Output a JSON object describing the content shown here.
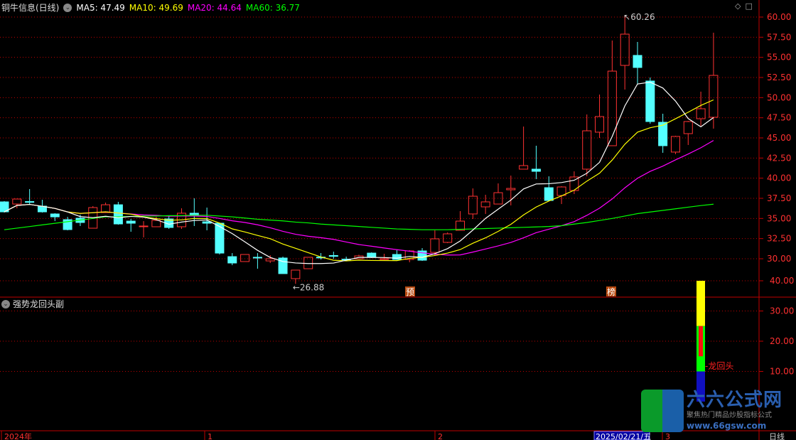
{
  "header": {
    "title": "铜牛信息(日线)",
    "ma5": "MA5: 47.49",
    "ma10": "MA10: 49.69",
    "ma20": "MA20: 44.64",
    "ma60": "MA60: 36.77"
  },
  "indicator": {
    "title": "强势龙回头副",
    "signal_label": "-龙回头"
  },
  "markers": {
    "low_label": "26.88",
    "high_label": "60.26",
    "pre": "预",
    "bang": "榜"
  },
  "bottom_axis": {
    "labels": [
      "2024年",
      "1",
      "2",
      "2025/02/21/五",
      "3"
    ],
    "period": "日线"
  },
  "window_icons": [
    "◇",
    "□"
  ],
  "logo": {
    "name": "六六公式网",
    "slogan": "聚焦热门精品炒股指标公式",
    "url": "www.66gsw.com"
  },
  "colors": {
    "up": "#ff3232",
    "down": "#54ffff",
    "ma5": "#ffffff",
    "ma10": "#ffff00",
    "ma20": "#ff00ff",
    "ma60": "#00ff00",
    "grid": "#c00000"
  },
  "chart_data": [
    {
      "type": "candlestick",
      "ylim": [
        27.5,
        60
      ],
      "yticks": [
        "60.00",
        "57.50",
        "55.00",
        "52.50",
        "50.00",
        "47.50",
        "45.00",
        "42.50",
        "40.00",
        "37.50",
        "35.00",
        "32.50",
        "30.00"
      ],
      "ohlc": [
        [
          37.06,
          37.15,
          35.73,
          35.82
        ],
        [
          36.79,
          37.41,
          36.26,
          37.41
        ],
        [
          37.1,
          38.65,
          36.7,
          37.0
        ],
        [
          36.53,
          37.32,
          35.73,
          35.82
        ],
        [
          35.56,
          35.65,
          34.67,
          35.2
        ],
        [
          34.85,
          35.2,
          33.53,
          33.62
        ],
        [
          35.03,
          35.47,
          34.06,
          34.5
        ],
        [
          33.79,
          36.53,
          33.79,
          36.35
        ],
        [
          35.73,
          36.97,
          35.73,
          36.7
        ],
        [
          36.7,
          37.06,
          34.23,
          34.32
        ],
        [
          34.67,
          34.94,
          33.35,
          34.41
        ],
        [
          34.06,
          34.67,
          32.65,
          34.06
        ],
        [
          33.97,
          35.2,
          33.97,
          34.76
        ],
        [
          34.94,
          35.29,
          33.7,
          33.88
        ],
        [
          33.97,
          36.26,
          33.7,
          35.65
        ],
        [
          35.65,
          37.5,
          34.06,
          35.38
        ],
        [
          34.59,
          36.35,
          33.53,
          34.41
        ],
        [
          34.41,
          34.5,
          30.53,
          30.7
        ],
        [
          30.26,
          30.7,
          29.2,
          29.47
        ],
        [
          29.65,
          30.53,
          29.65,
          30.53
        ],
        [
          30.18,
          30.7,
          28.76,
          30.1
        ],
        [
          29.73,
          30.44,
          29.47,
          30.0
        ],
        [
          30.09,
          30.26,
          28.15,
          28.15
        ],
        [
          27.53,
          28.59,
          26.88,
          28.59
        ],
        [
          28.76,
          30.18,
          28.76,
          30.18
        ],
        [
          30.2,
          30.7,
          29.91,
          30.1
        ],
        [
          30.4,
          30.88,
          30.0,
          30.3
        ],
        [
          29.95,
          30.26,
          29.73,
          29.9
        ],
        [
          30.0,
          30.5,
          29.95,
          30.35
        ],
        [
          30.7,
          30.79,
          30.1,
          30.18
        ],
        [
          29.91,
          30.62,
          29.85,
          30.0
        ],
        [
          30.53,
          31.06,
          29.85,
          29.91
        ],
        [
          29.91,
          31.06,
          29.56,
          30.97
        ],
        [
          30.97,
          31.32,
          29.73,
          29.82
        ],
        [
          30.79,
          33.53,
          30.44,
          32.47
        ],
        [
          32.03,
          33.26,
          31.94,
          33.09
        ],
        [
          33.53,
          35.91,
          33.53,
          34.67
        ],
        [
          35.56,
          38.73,
          34.94,
          37.76
        ],
        [
          36.44,
          37.94,
          35.56,
          37.06
        ],
        [
          36.79,
          39.35,
          36.79,
          38.2
        ],
        [
          38.56,
          40.32,
          36.62,
          38.73
        ],
        [
          41.12,
          46.41,
          41.12,
          41.56
        ],
        [
          41.12,
          44.03,
          39.88,
          40.85
        ],
        [
          38.82,
          40.23,
          37.23,
          37.23
        ],
        [
          37.85,
          39.0,
          36.79,
          38.91
        ],
        [
          38.47,
          40.85,
          38.03,
          40.15
        ],
        [
          41.12,
          47.91,
          40.23,
          45.88
        ],
        [
          45.71,
          50.38,
          45.0,
          47.65
        ],
        [
          44.03,
          57.09,
          44.03,
          53.29
        ],
        [
          54.0,
          60.26,
          51.0,
          57.88
        ],
        [
          55.24,
          56.91,
          51.62,
          53.74
        ],
        [
          52.06,
          52.5,
          46.76,
          47.03
        ],
        [
          46.94,
          48.0,
          43.15,
          44.03
        ],
        [
          43.24,
          45.26,
          42.97,
          45.18
        ],
        [
          45.53,
          47.12,
          44.12,
          47.03
        ],
        [
          47.38,
          50.74,
          46.5,
          48.62
        ],
        [
          47.56,
          58.06,
          46.15,
          52.76
        ]
      ],
      "ma60": [
        33.6,
        33.8,
        34.0,
        34.2,
        34.4,
        34.6,
        34.8,
        35.0,
        35.2,
        35.2,
        35.25,
        35.3,
        35.3,
        35.35,
        35.35,
        35.4,
        35.4,
        35.3,
        35.2,
        35.05,
        34.9,
        34.8,
        34.7,
        34.55,
        34.45,
        34.3,
        34.2,
        34.1,
        34.0,
        33.9,
        33.8,
        33.7,
        33.65,
        33.6,
        33.6,
        33.6,
        33.65,
        33.7,
        33.75,
        33.8,
        33.85,
        33.9,
        33.95,
        34.0,
        34.1,
        34.3,
        34.5,
        34.75,
        35.0,
        35.3,
        35.6,
        35.8,
        36.0,
        36.2,
        36.4,
        36.6,
        36.77
      ]
    },
    {
      "type": "bar",
      "ylim": [
        0,
        40
      ],
      "yticks": [
        "40.00",
        "30.00",
        "20.00",
        "10.00"
      ],
      "segments": [
        {
          "color": "#ffff00",
          "from": 25,
          "to": 40
        },
        {
          "color": "#00ff00",
          "from": 6,
          "to": 25
        },
        {
          "color": "#ff1010",
          "from": 15,
          "to": 25
        },
        {
          "color": "#1010c0",
          "from": 0,
          "to": 10
        }
      ]
    }
  ]
}
